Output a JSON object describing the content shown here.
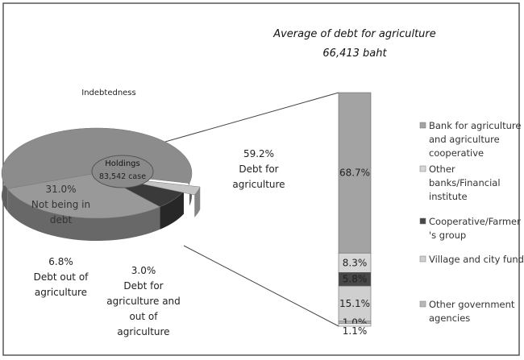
{
  "chart_data": [
    {
      "type": "pie",
      "title": "Indebtedness",
      "center_label": "Holdings",
      "center_value": "83,542 case",
      "categories": [
        "Debt for agriculture",
        "Not being in debt",
        "Debt out of agriculture",
        "Debt for agriculture and out of agriculture"
      ],
      "values": [
        59.2,
        31.0,
        6.8,
        3.0
      ],
      "value_labels": [
        "59.2%",
        "31.0%",
        "6.8%",
        "3.0%"
      ],
      "colors": [
        "#8c8c8c",
        "#999999",
        "#3a3a3a",
        "#c4c4c4"
      ]
    },
    {
      "type": "bar",
      "title": "Average of debt for agriculture",
      "subtitle": "66,413 baht",
      "categories": [
        "Bank for agriculture and agriculture cooperative",
        "Other banks/Financial institute",
        "Cooperative/Farmer 's group",
        "Village and city fund",
        "Other government agencies",
        null
      ],
      "values": [
        68.7,
        8.3,
        5.8,
        15.1,
        1.0,
        1.1
      ],
      "value_labels": [
        "68.7%",
        "8.3%",
        "5.8%",
        "15.1%",
        "1.0%",
        "1.1%"
      ],
      "colors": [
        "#a3a3a3",
        "#d6d6d6",
        "#474747",
        "#cfcfcf",
        "#b8b8b8",
        "#f2f2f2"
      ]
    }
  ]
}
